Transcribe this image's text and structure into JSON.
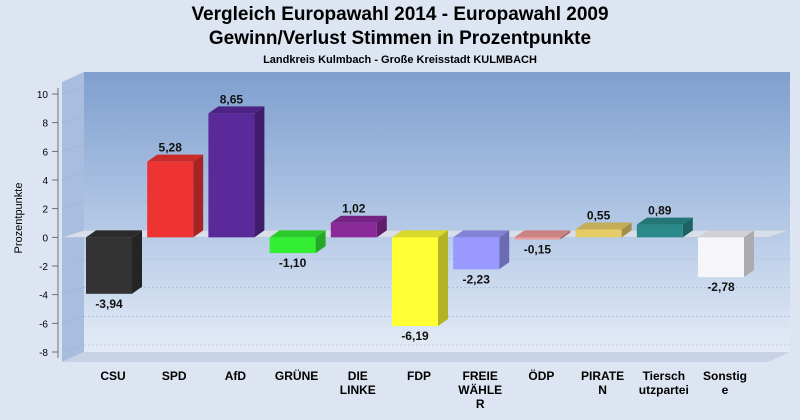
{
  "header": {
    "title_line1": "Vergleich Europawahl 2014 - Europawahl 2009",
    "title_line2": "Gewinn/Verlust Stimmen in Prozentpunkte",
    "subtitle": "Landkreis Kulmbach - Große Kreisstadt KULMBACH"
  },
  "chart_data": {
    "type": "bar",
    "title": "Vergleich Europawahl 2014 - Europawahl 2009 / Gewinn/Verlust Stimmen in Prozentpunkte",
    "subtitle": "Landkreis Kulmbach - Große Kreisstadt KULMBACH",
    "ylabel": "Prozentpunkte",
    "xlabel": "",
    "ylim": [
      -8,
      10
    ],
    "yticks": [
      10,
      8,
      6,
      4,
      2,
      0,
      -2,
      -4,
      -6,
      -8
    ],
    "grid": true,
    "categories": [
      [
        "CSU"
      ],
      [
        "SPD"
      ],
      [
        "AfD"
      ],
      [
        "GRÜNE"
      ],
      [
        "DIE",
        "LINKE"
      ],
      [
        "FDP"
      ],
      [
        "FREIE",
        "WÄHLE",
        "R"
      ],
      [
        "ÖDP"
      ],
      [
        "PIRATE",
        "N"
      ],
      [
        "Tiersch",
        "utzpartei"
      ],
      [
        "Sonstig",
        "e"
      ]
    ],
    "values": [
      -3.94,
      5.28,
      8.65,
      -1.1,
      1.02,
      -6.19,
      -2.23,
      -0.15,
      0.55,
      0.89,
      -2.78
    ],
    "value_labels": [
      "-3,94",
      "5,28",
      "8,65",
      "-1,10",
      "1,02",
      "-6,19",
      "-2,23",
      "-0,15",
      "0,55",
      "0,89",
      "-2,78"
    ],
    "colors": [
      "#333333",
      "#ee3333",
      "#5a2a9a",
      "#33ee33",
      "#8a2a9a",
      "#ffff33",
      "#9999ff",
      "#ee9999",
      "#e6cc66",
      "#2a8a8a",
      "#f5f5fa"
    ]
  }
}
